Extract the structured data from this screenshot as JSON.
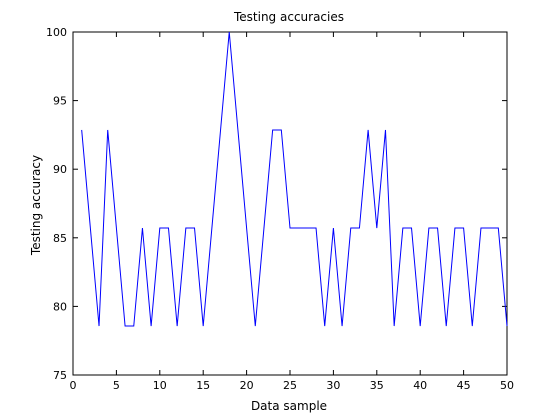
{
  "chart_data": {
    "type": "line",
    "title": "Testing accuracies",
    "xlabel": "Data sample",
    "ylabel": "Testing accuracy",
    "xlim": [
      0,
      50
    ],
    "ylim": [
      75,
      100
    ],
    "xticks": [
      0,
      5,
      10,
      15,
      20,
      25,
      30,
      35,
      40,
      45,
      50
    ],
    "yticks": [
      75,
      80,
      85,
      90,
      95,
      100
    ],
    "grid": false,
    "legend": "none",
    "series": [
      {
        "color": "#0000ff",
        "x": [
          1,
          2,
          3,
          4,
          5,
          6,
          7,
          8,
          9,
          10,
          11,
          12,
          13,
          14,
          15,
          16,
          17,
          18,
          19,
          20,
          21,
          22,
          23,
          24,
          25,
          26,
          27,
          28,
          29,
          30,
          31,
          32,
          33,
          34,
          35,
          36,
          37,
          38,
          39,
          40,
          41,
          42,
          43,
          44,
          45,
          46,
          47,
          48,
          49,
          50
        ],
        "y": [
          92.86,
          85.71,
          78.57,
          92.86,
          85.71,
          78.57,
          78.57,
          85.71,
          78.57,
          85.71,
          85.71,
          78.57,
          85.71,
          85.71,
          78.57,
          85.71,
          92.86,
          100.0,
          92.86,
          85.71,
          78.57,
          85.71,
          92.86,
          92.86,
          85.71,
          85.71,
          85.71,
          85.71,
          78.57,
          85.71,
          78.57,
          85.71,
          85.71,
          92.86,
          85.71,
          92.86,
          78.57,
          85.71,
          85.71,
          78.57,
          85.71,
          85.71,
          78.57,
          85.71,
          85.71,
          78.57,
          85.71,
          85.71,
          85.71,
          78.57
        ]
      }
    ]
  }
}
